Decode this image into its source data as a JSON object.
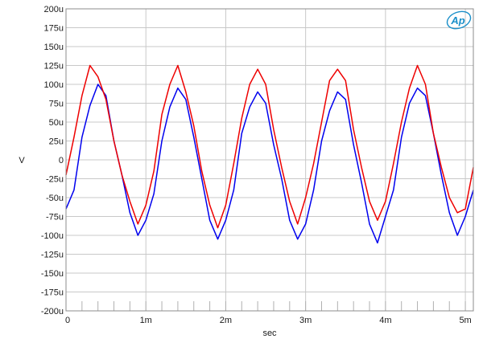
{
  "chart_data": {
    "type": "line",
    "title": "",
    "xlabel": "sec",
    "ylabel": "V",
    "xlim": [
      0,
      0.0051
    ],
    "ylim": [
      -200,
      200
    ],
    "y_unit": "u (microvolts)",
    "x_ticks": [
      {
        "value": 0,
        "label": "0"
      },
      {
        "value": 0.001,
        "label": "1m"
      },
      {
        "value": 0.002,
        "label": "2m"
      },
      {
        "value": 0.003,
        "label": "3m"
      },
      {
        "value": 0.004,
        "label": "4m"
      },
      {
        "value": 0.005,
        "label": "5m"
      }
    ],
    "y_ticks": [
      {
        "value": 200,
        "label": "200u"
      },
      {
        "value": 175,
        "label": "175u"
      },
      {
        "value": 150,
        "label": "150u"
      },
      {
        "value": 125,
        "label": "125u"
      },
      {
        "value": 100,
        "label": "100u"
      },
      {
        "value": 75,
        "label": "75u"
      },
      {
        "value": 50,
        "label": "50u"
      },
      {
        "value": 25,
        "label": "25u"
      },
      {
        "value": 0,
        "label": "0"
      },
      {
        "value": -25,
        "label": "-25u"
      },
      {
        "value": -50,
        "label": "-50u"
      },
      {
        "value": -75,
        "label": "-75u"
      },
      {
        "value": -100,
        "label": "-100u"
      },
      {
        "value": -125,
        "label": "-125u"
      },
      {
        "value": -150,
        "label": "-150u"
      },
      {
        "value": -175,
        "label": "-175u"
      },
      {
        "value": -200,
        "label": "-200u"
      }
    ],
    "grid": true,
    "legend": "none",
    "series": [
      {
        "color": "#0000ee",
        "x": [
          0,
          0.0001,
          0.0002,
          0.0003,
          0.0004,
          0.0005,
          0.0006,
          0.0007,
          0.0008,
          0.0009,
          0.001,
          0.0011,
          0.0012,
          0.0013,
          0.0014,
          0.0015,
          0.0016,
          0.0017,
          0.0018,
          0.0019,
          0.002,
          0.0021,
          0.0022,
          0.0023,
          0.0024,
          0.0025,
          0.0026,
          0.0027,
          0.0028,
          0.0029,
          0.003,
          0.0031,
          0.0032,
          0.0033,
          0.0034,
          0.0035,
          0.0036,
          0.0037,
          0.0038,
          0.0039,
          0.004,
          0.0041,
          0.0042,
          0.0043,
          0.0044,
          0.0045,
          0.0046,
          0.0047,
          0.0048,
          0.0049,
          0.005,
          0.0051
        ],
        "values": [
          -65,
          -40,
          30,
          72,
          100,
          85,
          25,
          -20,
          -70,
          -100,
          -80,
          -45,
          25,
          70,
          95,
          80,
          30,
          -25,
          -80,
          -105,
          -80,
          -40,
          35,
          70,
          90,
          75,
          20,
          -25,
          -80,
          -105,
          -85,
          -40,
          25,
          65,
          90,
          80,
          20,
          -30,
          -85,
          -110,
          -75,
          -40,
          30,
          75,
          95,
          85,
          35,
          -20,
          -70,
          -100,
          -75,
          -40
        ]
      },
      {
        "color": "#ee0000",
        "x": [
          0,
          0.0001,
          0.0002,
          0.0003,
          0.0004,
          0.0005,
          0.0006,
          0.0007,
          0.0008,
          0.0009,
          0.001,
          0.0011,
          0.0012,
          0.0013,
          0.0014,
          0.0015,
          0.0016,
          0.0017,
          0.0018,
          0.0019,
          0.002,
          0.0021,
          0.0022,
          0.0023,
          0.0024,
          0.0025,
          0.0026,
          0.0027,
          0.0028,
          0.0029,
          0.003,
          0.0031,
          0.0032,
          0.0033,
          0.0034,
          0.0035,
          0.0036,
          0.0037,
          0.0038,
          0.0039,
          0.004,
          0.0041,
          0.0042,
          0.0043,
          0.0044,
          0.0045,
          0.0046,
          0.0047,
          0.0048,
          0.0049,
          0.005,
          0.0051
        ],
        "values": [
          -20,
          30,
          85,
          125,
          110,
          80,
          25,
          -20,
          -55,
          -85,
          -60,
          -15,
          60,
          100,
          125,
          90,
          45,
          -15,
          -60,
          -90,
          -60,
          -5,
          55,
          100,
          120,
          100,
          40,
          -10,
          -55,
          -85,
          -50,
          -5,
          50,
          105,
          120,
          105,
          40,
          -10,
          -55,
          -80,
          -55,
          -5,
          50,
          95,
          125,
          100,
          35,
          -10,
          -50,
          -70,
          -65,
          -10
        ]
      }
    ]
  },
  "logo": {
    "text": "Ap",
    "color": "#1a8fc9"
  }
}
